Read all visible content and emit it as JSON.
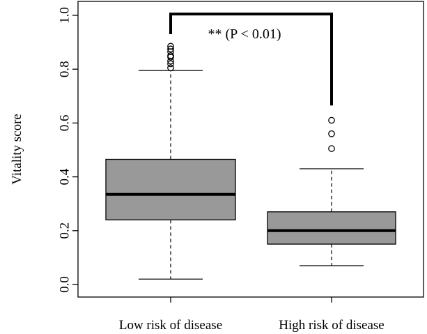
{
  "chart_data": {
    "type": "boxplot",
    "ylabel": "Vitality score",
    "ylim": [
      0.0,
      1.0
    ],
    "y_ticks": [
      "0.0",
      "0.2",
      "0.4",
      "0.6",
      "0.8",
      "1.0"
    ],
    "categories": [
      "Low risk of disease",
      "High risk of disease"
    ],
    "boxes": [
      {
        "category": "Low risk of disease",
        "whisker_low": 0.02,
        "q1": 0.24,
        "median": 0.335,
        "q3": 0.465,
        "whisker_high": 0.795,
        "outliers": [
          0.805,
          0.82,
          0.83,
          0.845,
          0.85,
          0.865,
          0.875,
          0.885
        ]
      },
      {
        "category": "High risk of disease",
        "whisker_low": 0.07,
        "q1": 0.15,
        "median": 0.2,
        "q3": 0.27,
        "whisker_high": 0.43,
        "outliers": [
          0.505,
          0.56,
          0.61
        ]
      }
    ],
    "significance": {
      "label": "** (P < 0.01)",
      "left_end": 0.93,
      "right_end": 0.665,
      "top": 1.005
    },
    "box_color": "#999999",
    "grid": false,
    "legend": "none"
  }
}
